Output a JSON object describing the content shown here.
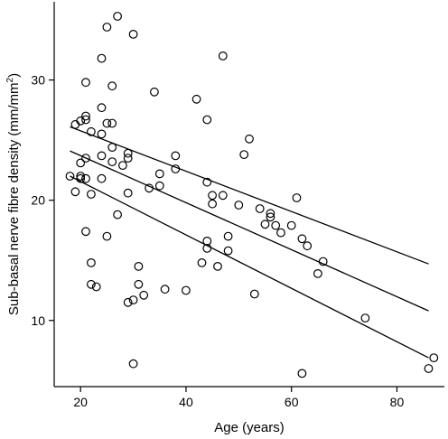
{
  "chart_data": {
    "type": "scatter",
    "xlabel": "Age (years)",
    "ylabel_main": "Sub-basal nerve fibre density (mm/mm",
    "ylabel_sup": "2",
    "ylabel_end": ")",
    "xlim": [
      15,
      89
    ],
    "ylim": [
      4.5,
      36.5
    ],
    "xticks": [
      20,
      40,
      60,
      80
    ],
    "yticks": [
      10,
      20,
      30
    ],
    "points": [
      [
        18,
        22
      ],
      [
        19,
        26.3
      ],
      [
        19,
        20.7
      ],
      [
        20,
        26.6
      ],
      [
        20,
        23.1
      ],
      [
        20,
        22
      ],
      [
        20,
        21.8
      ],
      [
        21,
        29.8
      ],
      [
        21,
        27
      ],
      [
        21,
        26.7
      ],
      [
        21,
        23.5
      ],
      [
        21,
        21.8
      ],
      [
        21,
        17.4
      ],
      [
        22,
        25.7
      ],
      [
        22,
        20.5
      ],
      [
        22,
        14.8
      ],
      [
        22,
        13
      ],
      [
        23,
        12.8
      ],
      [
        24,
        31.8
      ],
      [
        24,
        27.7
      ],
      [
        24,
        25.5
      ],
      [
        24,
        23.7
      ],
      [
        24,
        21.8
      ],
      [
        25,
        34.4
      ],
      [
        25,
        26.4
      ],
      [
        25,
        17
      ],
      [
        26,
        29.5
      ],
      [
        26,
        26.4
      ],
      [
        26,
        24.4
      ],
      [
        26,
        23.2
      ],
      [
        27,
        35.3
      ],
      [
        27,
        18.8
      ],
      [
        28,
        22.9
      ],
      [
        29,
        23.9
      ],
      [
        29,
        23.5
      ],
      [
        29,
        20.6
      ],
      [
        29,
        11.5
      ],
      [
        30,
        33.8
      ],
      [
        30,
        11.7
      ],
      [
        30,
        6.4
      ],
      [
        31,
        14.5
      ],
      [
        31,
        13
      ],
      [
        32,
        12.1
      ],
      [
        33,
        21
      ],
      [
        34,
        29
      ],
      [
        35,
        22.2
      ],
      [
        35,
        21.2
      ],
      [
        36,
        12.6
      ],
      [
        38,
        23.7
      ],
      [
        38,
        22.6
      ],
      [
        40,
        12.5
      ],
      [
        42,
        28.4
      ],
      [
        43,
        14.8
      ],
      [
        44,
        26.7
      ],
      [
        44,
        21.5
      ],
      [
        44,
        16.6
      ],
      [
        44,
        16
      ],
      [
        45,
        20.4
      ],
      [
        45,
        19.7
      ],
      [
        46,
        14.5
      ],
      [
        47,
        32
      ],
      [
        47,
        20.4
      ],
      [
        48,
        17
      ],
      [
        48,
        15.8
      ],
      [
        50,
        19.6
      ],
      [
        51,
        23.8
      ],
      [
        52,
        25.1
      ],
      [
        53,
        12.2
      ],
      [
        54,
        19.3
      ],
      [
        55,
        18
      ],
      [
        56,
        18.9
      ],
      [
        56,
        18.6
      ],
      [
        57,
        17.9
      ],
      [
        58,
        17.3
      ],
      [
        60,
        17.9
      ],
      [
        61,
        20.2
      ],
      [
        62,
        16.8
      ],
      [
        62,
        5.6
      ],
      [
        63,
        16.2
      ],
      [
        65,
        13.9
      ],
      [
        66,
        14.9
      ],
      [
        74,
        10.2
      ],
      [
        86,
        6
      ],
      [
        87,
        6.9
      ]
    ],
    "lines": [
      {
        "x": [
          18,
          86
        ],
        "y": [
          26.1,
          14.7
        ]
      },
      {
        "x": [
          18,
          86
        ],
        "y": [
          24.1,
          10.8
        ]
      },
      {
        "x": [
          18,
          86
        ],
        "y": [
          22.0,
          6.9
        ]
      }
    ]
  }
}
